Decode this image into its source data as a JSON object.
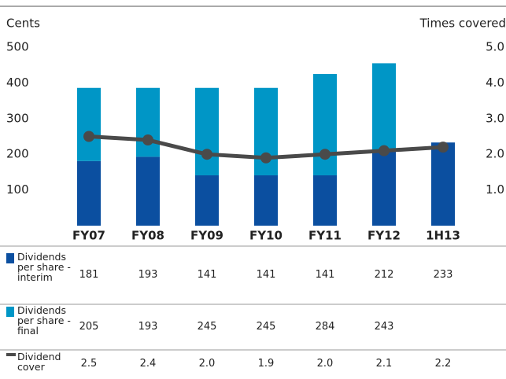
{
  "chart_data": {
    "type": "bar",
    "stacked": true,
    "y_label": "Cents",
    "y2_label": "Times covered",
    "categories": [
      "FY07",
      "FY08",
      "FY09",
      "FY10",
      "FY11",
      "FY12",
      "1H13"
    ],
    "ylim": [
      0,
      500
    ],
    "yticks": [
      100,
      200,
      300,
      400,
      500
    ],
    "y2lim": [
      0,
      5
    ],
    "y2ticks": [
      {
        "value": 1,
        "label": "1.0"
      },
      {
        "value": 2,
        "label": "2.0"
      },
      {
        "value": 3,
        "label": "3.0"
      },
      {
        "value": 4,
        "label": "4.0"
      },
      {
        "value": 5,
        "label": "5.0"
      }
    ],
    "series": [
      {
        "name": "Dividends per share -interim",
        "color": "#0b4fa0",
        "values": [
          181,
          193,
          141,
          141,
          141,
          212,
          233
        ]
      },
      {
        "name": "Dividends per share -final",
        "color": "#0096c6",
        "values": [
          205,
          193,
          245,
          245,
          284,
          243,
          null
        ]
      },
      {
        "name": "Dividend cover",
        "color": "#4a4a4a",
        "type": "line",
        "axis": "y2",
        "values": [
          2.5,
          2.4,
          2.0,
          1.9,
          2.0,
          2.1,
          2.2
        ],
        "value_labels": [
          "2.5",
          "2.4",
          "2.0",
          "1.9",
          "2.0",
          "2.1",
          "2.2"
        ]
      }
    ]
  }
}
